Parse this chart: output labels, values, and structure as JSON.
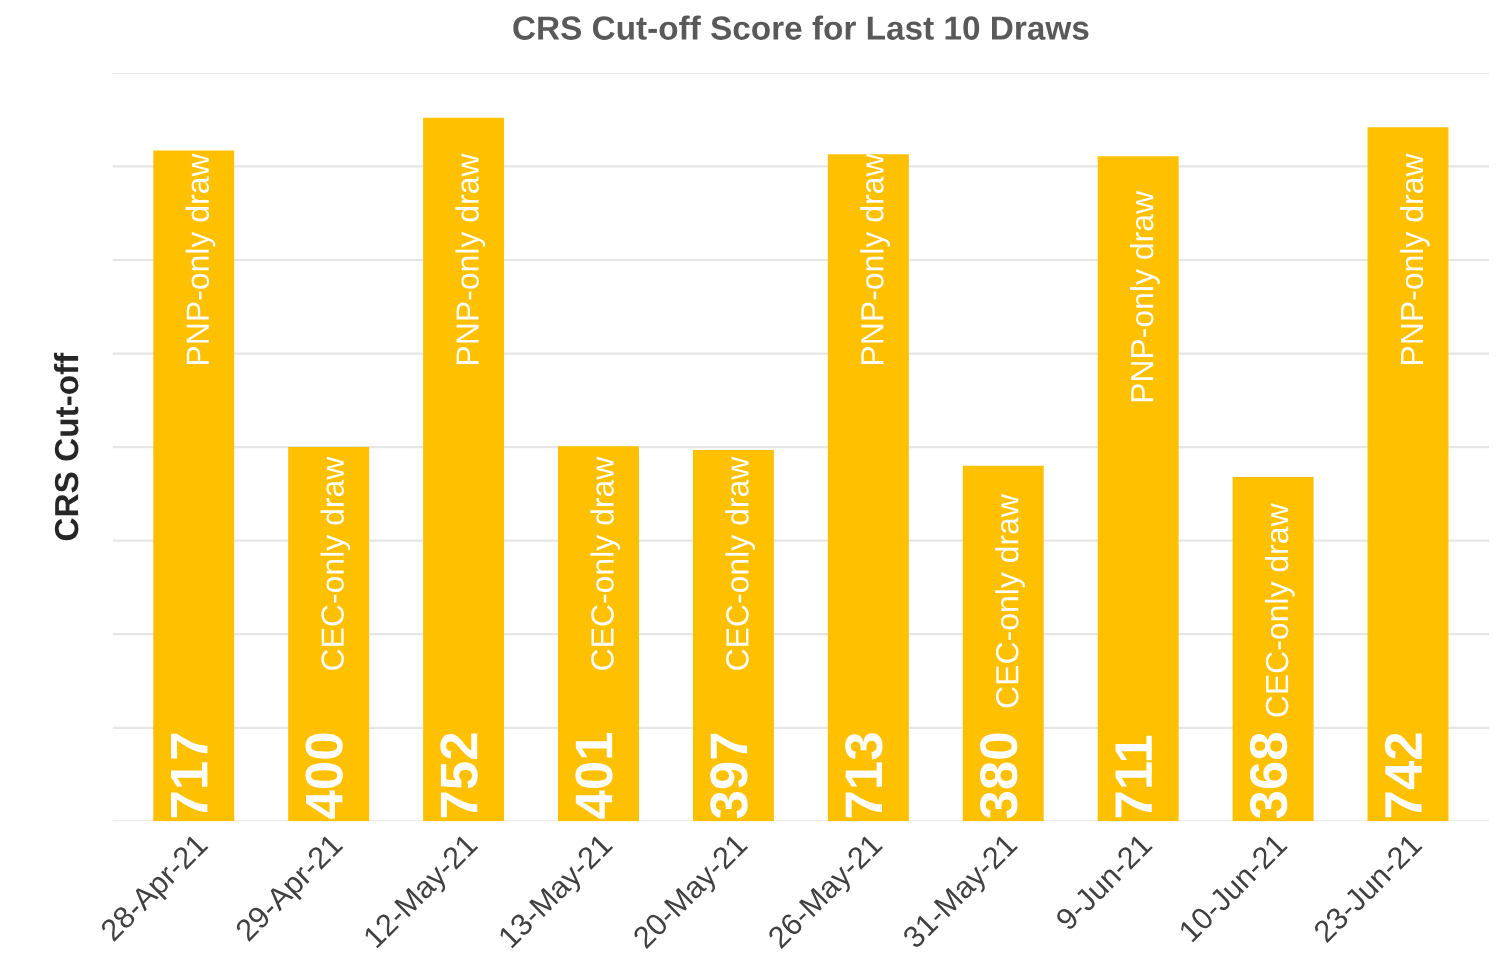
{
  "chart_data": {
    "type": "bar",
    "title": "CRS Cut-off Score for Last 10 Draws",
    "ylabel": "CRS Cut-off",
    "categories": [
      "28-Apr-21",
      "29-Apr-21",
      "12-May-21",
      "13-May-21",
      "20-May-21",
      "26-May-21",
      "31-May-21",
      "9-Jun-21",
      "10-Jun-21",
      "23-Jun-21"
    ],
    "values": [
      717,
      400,
      752,
      401,
      397,
      713,
      380,
      711,
      368,
      742
    ],
    "color": "#ffc000",
    "data_labels": true,
    "grid": "y",
    "tick_labels": "x",
    "ylim": [
      0,
      800
    ],
    "yticks": [
      {
        "value": 0,
        "label": null
      },
      {
        "value": 100,
        "label": null
      },
      {
        "value": 200,
        "label": null
      },
      {
        "value": 300,
        "label": null
      },
      {
        "value": 400,
        "label": null
      },
      {
        "value": 500,
        "label": null
      },
      {
        "value": 600,
        "label": null
      },
      {
        "value": 700,
        "label": null
      },
      {
        "value": 800,
        "label": null
      }
    ],
    "annotations": [
      {
        "text": "PNP-only draw",
        "x": "28-Apr-21",
        "y": 600
      },
      {
        "text": "CEC-only draw",
        "x": "29-Apr-21",
        "y": 275
      },
      {
        "text": "PNP-only draw",
        "x": "12-May-21",
        "y": 600
      },
      {
        "text": "CEC-only draw",
        "x": "13-May-21",
        "y": 275
      },
      {
        "text": "CEC-only draw",
        "x": "20-May-21",
        "y": 275
      },
      {
        "text": "PNP-only draw",
        "x": "26-May-21",
        "y": 600
      },
      {
        "text": "CEC-only draw",
        "x": "31-May-21",
        "y": 235
      },
      {
        "text": "PNP-only draw",
        "x": "9-Jun-21",
        "y": 560
      },
      {
        "text": "CEC-only draw",
        "x": "10-Jun-21",
        "y": 225
      },
      {
        "text": "PNP-only draw",
        "x": "23-Jun-21",
        "y": 600
      }
    ]
  }
}
